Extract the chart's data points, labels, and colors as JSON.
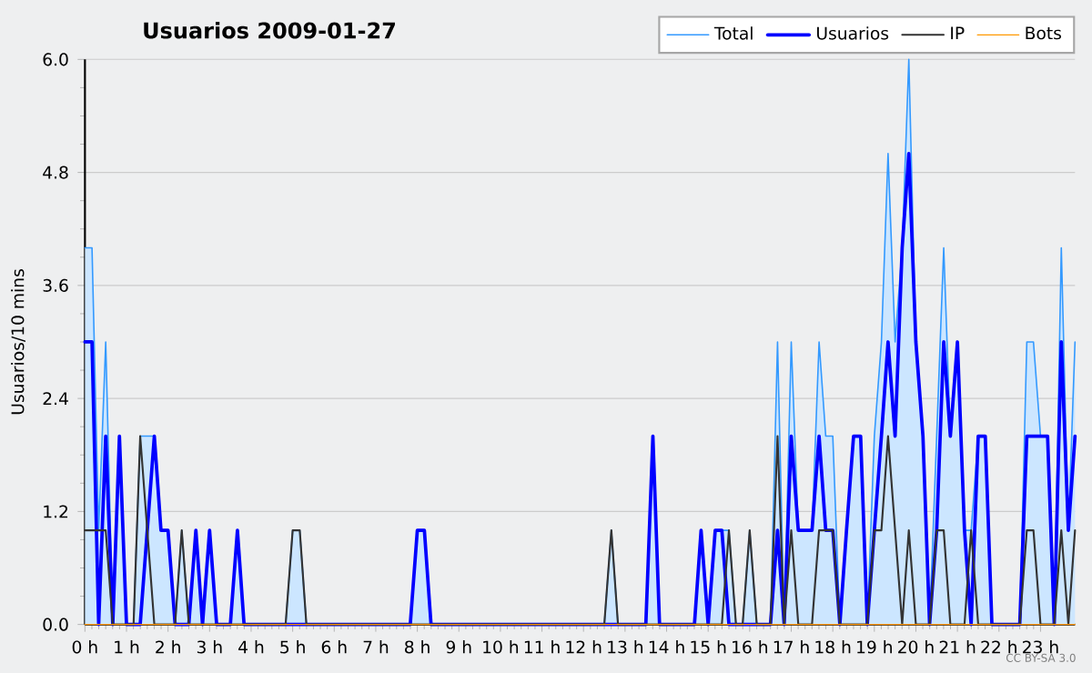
{
  "chart_data": {
    "type": "line",
    "title": "Usuarios  2009-01-27",
    "ylabel": "Usuarios/10 mins",
    "x": [
      0,
      0.17,
      0.33,
      0.5,
      0.67,
      0.83,
      1,
      1.17,
      1.33,
      1.5,
      1.67,
      1.83,
      2,
      2.17,
      2.33,
      2.5,
      2.67,
      2.83,
      3,
      3.17,
      3.33,
      3.5,
      3.67,
      3.83,
      4,
      4.17,
      4.33,
      4.5,
      4.67,
      4.83,
      5,
      5.17,
      5.33,
      5.5,
      5.67,
      5.83,
      6,
      6.17,
      6.33,
      6.5,
      6.67,
      6.83,
      7,
      7.17,
      7.33,
      7.5,
      7.67,
      7.83,
      8,
      8.17,
      8.33,
      8.5,
      8.67,
      8.83,
      9,
      9.17,
      9.33,
      9.5,
      9.67,
      9.83,
      10,
      10.17,
      10.33,
      10.5,
      10.67,
      10.83,
      11,
      11.17,
      11.33,
      11.5,
      11.67,
      11.83,
      12,
      12.17,
      12.33,
      12.5,
      12.67,
      12.83,
      13,
      13.17,
      13.33,
      13.5,
      13.67,
      13.83,
      14,
      14.17,
      14.33,
      14.5,
      14.67,
      14.83,
      15,
      15.17,
      15.33,
      15.5,
      15.67,
      15.83,
      16,
      16.17,
      16.33,
      16.5,
      16.67,
      16.83,
      17,
      17.17,
      17.33,
      17.5,
      17.67,
      17.83,
      18,
      18.17,
      18.33,
      18.5,
      18.67,
      18.83,
      19,
      19.17,
      19.33,
      19.5,
      19.67,
      19.83,
      20,
      20.17,
      20.33,
      20.5,
      20.67,
      20.83,
      21,
      21.17,
      21.33,
      21.5,
      21.67,
      21.83,
      22,
      22.17,
      22.33,
      22.5,
      22.67,
      22.83,
      23,
      23.17,
      23.33,
      23.5,
      23.67,
      23.83
    ],
    "series": [
      {
        "name": "Total",
        "type": "area",
        "color": "#3399ff",
        "values": [
          4,
          4,
          1,
          3,
          0,
          2,
          0,
          0,
          2,
          2,
          2,
          1,
          1,
          0,
          1,
          0,
          1,
          0,
          1,
          0,
          0,
          0,
          1,
          0,
          0,
          0,
          0,
          0,
          0,
          0,
          1,
          1,
          0,
          0,
          0,
          0,
          0,
          0,
          0,
          0,
          0,
          0,
          0,
          0,
          0,
          0,
          0,
          0,
          1,
          1,
          0,
          0,
          0,
          0,
          0,
          0,
          0,
          0,
          0,
          0,
          0,
          0,
          0,
          0,
          0,
          0,
          0,
          0,
          0,
          0,
          0,
          0,
          0,
          0,
          0,
          0,
          1,
          0,
          0,
          0,
          0,
          0,
          2,
          0,
          0,
          0,
          0,
          0,
          0,
          1,
          0,
          1,
          1,
          1,
          0,
          0,
          1,
          0,
          0,
          0,
          3,
          0,
          3,
          1,
          1,
          1,
          3,
          2,
          2,
          0,
          1,
          2,
          2,
          0,
          2,
          3,
          5,
          3,
          4,
          6,
          3,
          2,
          0,
          2,
          4,
          2,
          3,
          1,
          1,
          2,
          2,
          0,
          0,
          0,
          0,
          0,
          3,
          3,
          2,
          2,
          0,
          4,
          1,
          3
        ]
      },
      {
        "name": "Usuarios",
        "color": "#0000ff",
        "values": [
          3,
          3,
          0,
          2,
          0,
          2,
          0,
          0,
          0,
          1,
          2,
          1,
          1,
          0,
          0,
          0,
          1,
          0,
          1,
          0,
          0,
          0,
          1,
          0,
          0,
          0,
          0,
          0,
          0,
          0,
          0,
          0,
          0,
          0,
          0,
          0,
          0,
          0,
          0,
          0,
          0,
          0,
          0,
          0,
          0,
          0,
          0,
          0,
          1,
          1,
          0,
          0,
          0,
          0,
          0,
          0,
          0,
          0,
          0,
          0,
          0,
          0,
          0,
          0,
          0,
          0,
          0,
          0,
          0,
          0,
          0,
          0,
          0,
          0,
          0,
          0,
          0,
          0,
          0,
          0,
          0,
          0,
          2,
          0,
          0,
          0,
          0,
          0,
          0,
          1,
          0,
          1,
          1,
          0,
          0,
          0,
          0,
          0,
          0,
          0,
          1,
          0,
          2,
          1,
          1,
          1,
          2,
          1,
          1,
          0,
          1,
          2,
          2,
          0,
          1,
          2,
          3,
          2,
          4,
          5,
          3,
          2,
          0,
          1,
          3,
          2,
          3,
          1,
          0,
          2,
          2,
          0,
          0,
          0,
          0,
          0,
          2,
          2,
          2,
          2,
          0,
          3,
          1,
          2
        ]
      },
      {
        "name": "IP",
        "color": "#333333",
        "values": [
          1,
          1,
          1,
          1,
          0,
          0,
          0,
          0,
          2,
          1,
          0,
          0,
          0,
          0,
          1,
          0,
          0,
          0,
          0,
          0,
          0,
          0,
          0,
          0,
          0,
          0,
          0,
          0,
          0,
          0,
          1,
          1,
          0,
          0,
          0,
          0,
          0,
          0,
          0,
          0,
          0,
          0,
          0,
          0,
          0,
          0,
          0,
          0,
          0,
          0,
          0,
          0,
          0,
          0,
          0,
          0,
          0,
          0,
          0,
          0,
          0,
          0,
          0,
          0,
          0,
          0,
          0,
          0,
          0,
          0,
          0,
          0,
          0,
          0,
          0,
          0,
          1,
          0,
          0,
          0,
          0,
          0,
          0,
          0,
          0,
          0,
          0,
          0,
          0,
          0,
          0,
          0,
          0,
          1,
          0,
          0,
          1,
          0,
          0,
          0,
          2,
          0,
          1,
          0,
          0,
          0,
          1,
          1,
          1,
          0,
          0,
          0,
          0,
          0,
          1,
          1,
          2,
          1,
          0,
          1,
          0,
          0,
          0,
          1,
          1,
          0,
          0,
          0,
          1,
          0,
          0,
          0,
          0,
          0,
          0,
          0,
          1,
          1,
          0,
          0,
          0,
          1,
          0,
          1
        ]
      },
      {
        "name": "Bots",
        "color": "#ff9900",
        "values": [
          0,
          0,
          0,
          0,
          0,
          0,
          0,
          0,
          0,
          0,
          0,
          0,
          0,
          0,
          0,
          0,
          0,
          0,
          0,
          0,
          0,
          0,
          0,
          0,
          0,
          0,
          0,
          0,
          0,
          0,
          0,
          0,
          0,
          0,
          0,
          0,
          0,
          0,
          0,
          0,
          0,
          0,
          0,
          0,
          0,
          0,
          0,
          0,
          0,
          0,
          0,
          0,
          0,
          0,
          0,
          0,
          0,
          0,
          0,
          0,
          0,
          0,
          0,
          0,
          0,
          0,
          0,
          0,
          0,
          0,
          0,
          0,
          0,
          0,
          0,
          0,
          0,
          0,
          0,
          0,
          0,
          0,
          0,
          0,
          0,
          0,
          0,
          0,
          0,
          0,
          0,
          0,
          0,
          0,
          0,
          0,
          0,
          0,
          0,
          0,
          0,
          0,
          0,
          0,
          0,
          0,
          0,
          0,
          0,
          0,
          0,
          0,
          0,
          0,
          0,
          0,
          0,
          0,
          0,
          0,
          0,
          0,
          0,
          0,
          0,
          0,
          0,
          0,
          0,
          0,
          0,
          0,
          0,
          0,
          0,
          0,
          0,
          0,
          0,
          0,
          0,
          0,
          0,
          0
        ]
      }
    ],
    "xlim": [
      0,
      23.83
    ],
    "xticks": [
      {
        "value": 0,
        "label": "0 h"
      },
      {
        "value": 1,
        "label": "1 h"
      },
      {
        "value": 2,
        "label": "2 h"
      },
      {
        "value": 3,
        "label": "3 h"
      },
      {
        "value": 4,
        "label": "4 h"
      },
      {
        "value": 5,
        "label": "5 h"
      },
      {
        "value": 6,
        "label": "6 h"
      },
      {
        "value": 7,
        "label": "7 h"
      },
      {
        "value": 8,
        "label": "8 h"
      },
      {
        "value": 9,
        "label": "9 h"
      },
      {
        "value": 10,
        "label": "10 h"
      },
      {
        "value": 11,
        "label": "11 h"
      },
      {
        "value": 12,
        "label": "12 h"
      },
      {
        "value": 13,
        "label": "13 h"
      },
      {
        "value": 14,
        "label": "14 h"
      },
      {
        "value": 15,
        "label": "15 h"
      },
      {
        "value": 16,
        "label": "16 h"
      },
      {
        "value": 17,
        "label": "17 h"
      },
      {
        "value": 18,
        "label": "18 h"
      },
      {
        "value": 19,
        "label": "19 h"
      },
      {
        "value": 20,
        "label": "20 h"
      },
      {
        "value": 21,
        "label": "21 h"
      },
      {
        "value": 22,
        "label": "22 h"
      },
      {
        "value": 23,
        "label": "23 h"
      }
    ],
    "ylim": [
      0,
      6
    ],
    "yticks": [
      {
        "value": 0,
        "label": "0.0"
      },
      {
        "value": 1.2,
        "label": "1.2"
      },
      {
        "value": 2.4,
        "label": "2.4"
      },
      {
        "value": 3.6,
        "label": "3.6"
      },
      {
        "value": 4.8,
        "label": "4.8"
      },
      {
        "value": 6,
        "label": "6.0"
      }
    ],
    "grid": "y",
    "legend": "top right",
    "annotations": [
      "CC BY-SA 3.0"
    ]
  }
}
